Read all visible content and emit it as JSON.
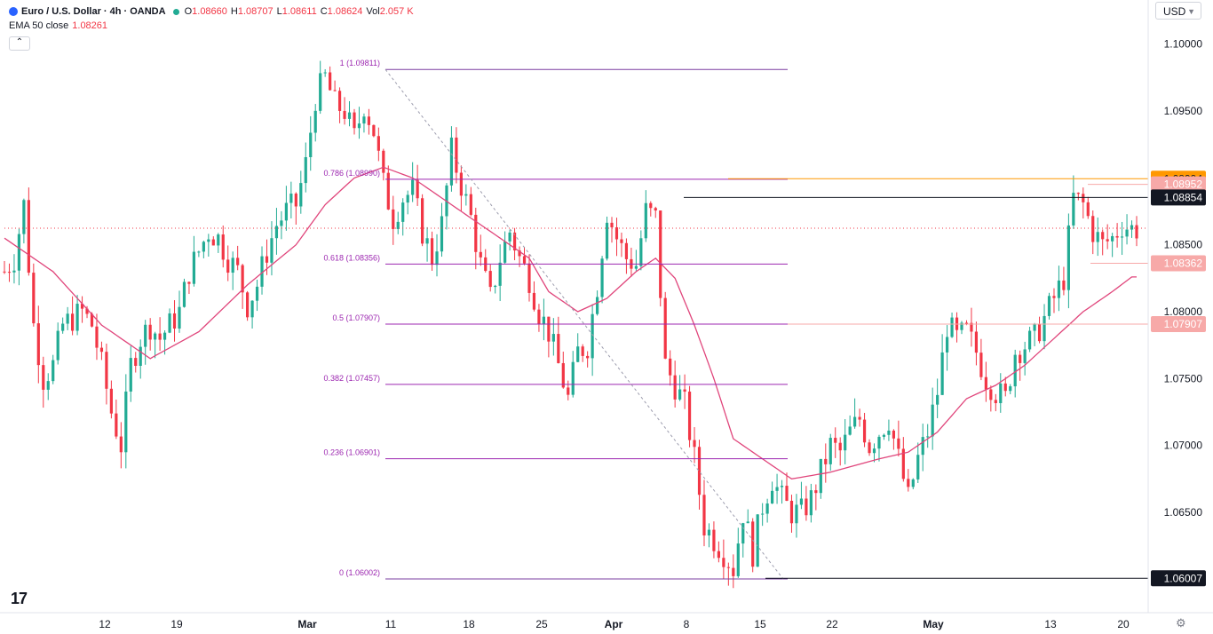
{
  "header": {
    "symbol": "Euro / U.S. Dollar · 4h · OANDA",
    "ohlc": [
      {
        "label": "O",
        "value": "1.08660"
      },
      {
        "label": "H",
        "value": "1.08707"
      },
      {
        "label": "L",
        "value": "1.08611"
      },
      {
        "label": "C",
        "value": "1.08624"
      },
      {
        "label": "Vol",
        "value": "2.057 K"
      }
    ],
    "indicator_label": "EMA 50 close",
    "indicator_value": "1.08261",
    "collapse_icon": "chevron-up-icon",
    "currency": "USD"
  },
  "colors": {
    "up": "#22ab94",
    "down": "#f23645",
    "ema": "#e0457b",
    "fib": "#9c27b0",
    "orange": "#ff9800",
    "black": "#131722",
    "pink_label": "#f7a9a8"
  },
  "chart_data": {
    "type": "candlestick",
    "symbol": "EUR/USD",
    "timeframe": "4h",
    "x_ticks": [
      "12",
      "19",
      "Mar",
      "11",
      "18",
      "25",
      "Apr",
      "8",
      "15",
      "22",
      "May",
      "13",
      "20"
    ],
    "y_ticks": [
      "1.10000",
      "1.09500",
      "1.08500",
      "1.08000",
      "1.07500",
      "1.07000",
      "1.06500"
    ],
    "ylim": [
      1.0575,
      1.1033
    ],
    "price_path": [
      [
        0,
        1.083
      ],
      [
        2,
        1.084
      ],
      [
        4,
        1.088
      ],
      [
        6,
        1.079
      ],
      [
        8,
        1.075
      ],
      [
        10,
        1.076
      ],
      [
        12,
        1.079
      ],
      [
        14,
        1.0795
      ],
      [
        16,
        1.08
      ],
      [
        18,
        1.079
      ],
      [
        20,
        1.076
      ],
      [
        22,
        1.0725
      ],
      [
        24,
        1.07
      ],
      [
        26,
        1.076
      ],
      [
        28,
        1.078
      ],
      [
        30,
        1.079
      ],
      [
        32,
        1.078
      ],
      [
        34,
        1.079
      ],
      [
        36,
        1.08
      ],
      [
        38,
        1.083
      ],
      [
        40,
        1.0845
      ],
      [
        42,
        1.086
      ],
      [
        44,
        1.0855
      ],
      [
        46,
        1.084
      ],
      [
        48,
        1.083
      ],
      [
        50,
        1.0805
      ],
      [
        52,
        1.082
      ],
      [
        54,
        1.0845
      ],
      [
        56,
        1.0865
      ],
      [
        58,
        1.0875
      ],
      [
        60,
        1.088
      ],
      [
        62,
        1.091
      ],
      [
        64,
        1.096
      ],
      [
        66,
        1.0975
      ],
      [
        68,
        1.0955
      ],
      [
        70,
        1.095
      ],
      [
        72,
        1.093
      ],
      [
        74,
        1.0955
      ],
      [
        76,
        1.0935
      ],
      [
        78,
        1.0895
      ],
      [
        80,
        1.087
      ],
      [
        82,
        1.0885
      ],
      [
        84,
        1.089
      ],
      [
        86,
        1.086
      ],
      [
        88,
        1.084
      ],
      [
        90,
        1.0865
      ],
      [
        92,
        1.092
      ],
      [
        94,
        1.0895
      ],
      [
        96,
        1.087
      ],
      [
        98,
        1.0835
      ],
      [
        100,
        1.081
      ],
      [
        102,
        1.084
      ],
      [
        104,
        1.086
      ],
      [
        106,
        1.084
      ],
      [
        108,
        1.0825
      ],
      [
        110,
        1.08
      ],
      [
        112,
        1.0785
      ],
      [
        114,
        1.076
      ],
      [
        116,
        1.0735
      ],
      [
        118,
        1.077
      ],
      [
        120,
        1.0775
      ],
      [
        122,
        1.082
      ],
      [
        124,
        1.0875
      ],
      [
        126,
        1.0855
      ],
      [
        128,
        1.084
      ],
      [
        130,
        1.0835
      ],
      [
        132,
        1.0875
      ],
      [
        134,
        1.087
      ],
      [
        136,
        1.076
      ],
      [
        138,
        1.0745
      ],
      [
        140,
        1.073
      ],
      [
        142,
        1.069
      ],
      [
        144,
        1.064
      ],
      [
        146,
        1.063
      ],
      [
        148,
        1.062
      ],
      [
        150,
        1.0608
      ],
      [
        152,
        1.065
      ],
      [
        154,
        1.062
      ],
      [
        156,
        1.0655
      ],
      [
        158,
        1.0675
      ],
      [
        160,
        1.066
      ],
      [
        162,
        1.065
      ],
      [
        164,
        1.065
      ],
      [
        166,
        1.066
      ],
      [
        168,
        1.068
      ],
      [
        170,
        1.07
      ],
      [
        172,
        1.0695
      ],
      [
        174,
        1.071
      ],
      [
        176,
        1.072
      ],
      [
        178,
        1.07
      ],
      [
        180,
        1.071
      ],
      [
        182,
        1.072
      ],
      [
        184,
        1.069
      ],
      [
        186,
        1.066
      ],
      [
        188,
        1.069
      ],
      [
        190,
        1.071
      ],
      [
        192,
        1.074
      ],
      [
        194,
        1.079
      ],
      [
        196,
        1.078
      ],
      [
        198,
        1.0785
      ],
      [
        200,
        1.077
      ],
      [
        202,
        1.075
      ],
      [
        204,
        1.074
      ],
      [
        206,
        1.0735
      ],
      [
        208,
        1.077
      ],
      [
        210,
        1.0775
      ],
      [
        212,
        1.078
      ],
      [
        214,
        1.0795
      ],
      [
        216,
        1.081
      ],
      [
        218,
        1.0825
      ],
      [
        220,
        1.0885
      ],
      [
        222,
        1.088
      ],
      [
        224,
        1.086
      ],
      [
        226,
        1.085
      ],
      [
        228,
        1.0855
      ],
      [
        230,
        1.0865
      ],
      [
        232,
        1.0862
      ]
    ],
    "ema_50_path": [
      [
        0,
        1.0855
      ],
      [
        10,
        1.083
      ],
      [
        20,
        1.079
      ],
      [
        30,
        1.0765
      ],
      [
        40,
        1.0785
      ],
      [
        50,
        1.082
      ],
      [
        60,
        1.085
      ],
      [
        66,
        1.088
      ],
      [
        72,
        1.09
      ],
      [
        78,
        1.0908
      ],
      [
        84,
        1.09
      ],
      [
        90,
        1.0885
      ],
      [
        96,
        1.087
      ],
      [
        102,
        1.0855
      ],
      [
        108,
        1.084
      ],
      [
        112,
        1.0815
      ],
      [
        118,
        1.08
      ],
      [
        124,
        1.081
      ],
      [
        130,
        1.083
      ],
      [
        134,
        1.084
      ],
      [
        138,
        1.0825
      ],
      [
        142,
        1.079
      ],
      [
        146,
        1.075
      ],
      [
        150,
        1.0705
      ],
      [
        156,
        1.069
      ],
      [
        162,
        1.0675
      ],
      [
        170,
        1.068
      ],
      [
        180,
        1.069
      ],
      [
        186,
        1.0695
      ],
      [
        192,
        1.071
      ],
      [
        198,
        1.0735
      ],
      [
        204,
        1.0745
      ],
      [
        210,
        1.076
      ],
      [
        216,
        1.078
      ],
      [
        222,
        1.08
      ],
      [
        228,
        1.0815
      ],
      [
        232,
        1.0826
      ]
    ],
    "fibonacci": {
      "levels": [
        {
          "ratio": "1",
          "price": "1.09811",
          "label": "1 (1.09811)"
        },
        {
          "ratio": "0.786",
          "price": "1.08990",
          "label": "0.786 (1.08990)"
        },
        {
          "ratio": "0.618",
          "price": "1.08356",
          "label": "0.618 (1.08356)"
        },
        {
          "ratio": "0.5",
          "price": "1.07907",
          "label": "0.5 (1.07907)"
        },
        {
          "ratio": "0.382",
          "price": "1.07457",
          "label": "0.382 (1.07457)"
        },
        {
          "ratio": "0.236",
          "price": "1.06901",
          "label": "0.236 (1.06901)"
        },
        {
          "ratio": "0",
          "price": "1.06002",
          "label": "0 (1.06002)"
        }
      ]
    },
    "price_labels": [
      {
        "value": "1.08994",
        "color": "#ff9800",
        "text_color": "#131722"
      },
      {
        "value": "1.08952",
        "color": "#f7a9a8",
        "text_color": "#ffffff"
      },
      {
        "value": "1.08854",
        "color": "#131722",
        "text_color": "#ffffff"
      },
      {
        "value": "1.08362",
        "color": "#f7a9a8",
        "text_color": "#ffffff"
      },
      {
        "value": "1.07907",
        "color": "#f7a9a8",
        "text_color": "#ffffff"
      },
      {
        "value": "1.06007",
        "color": "#131722",
        "text_color": "#ffffff"
      }
    ],
    "current_price": 1.08624,
    "grid": false
  },
  "footer": {
    "logo_text": "17",
    "settings_icon": "gear-icon"
  }
}
